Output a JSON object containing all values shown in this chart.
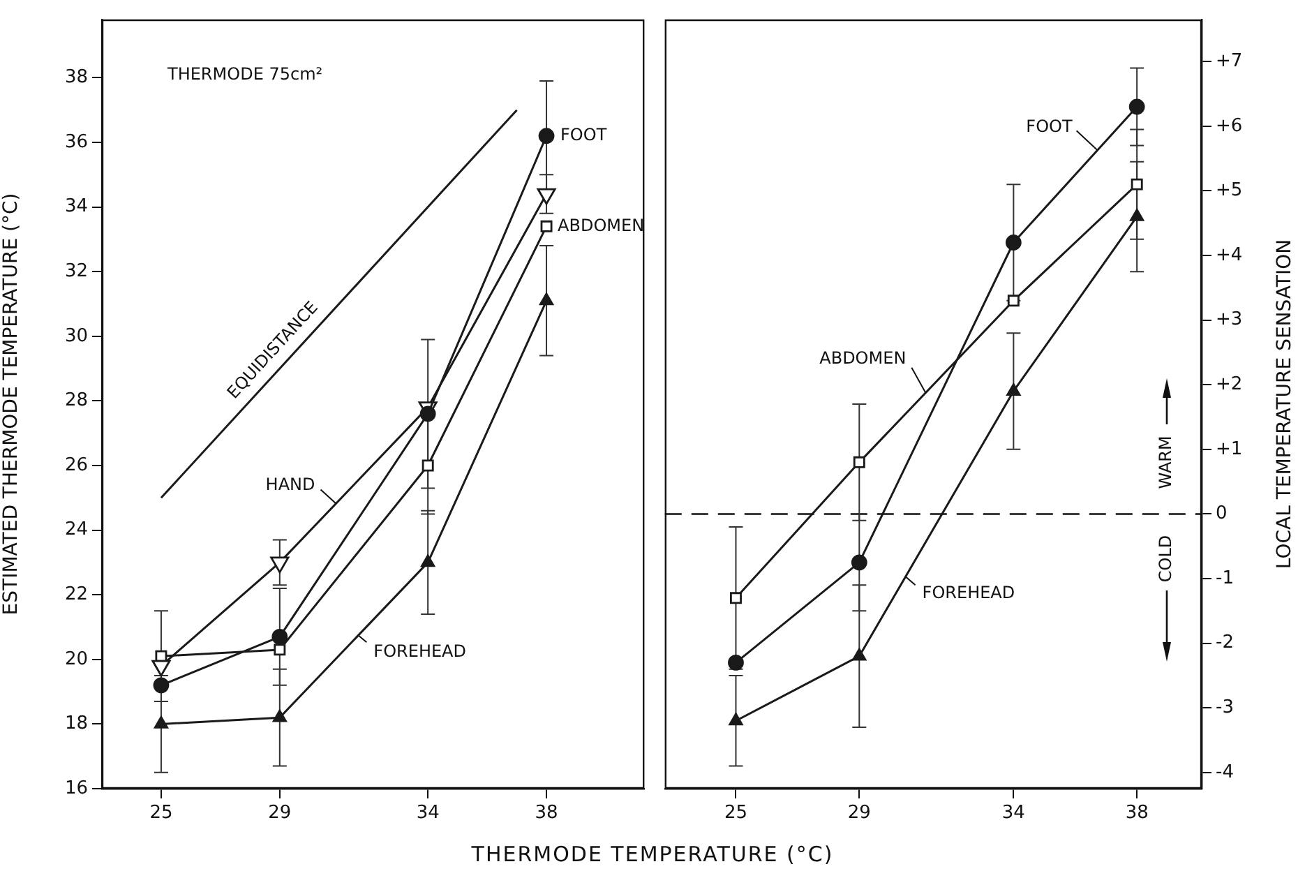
{
  "chart_data": [
    {
      "type": "line",
      "xlabel": "THERMODE TEMPERATURE (°C)",
      "ylabel": "ESTIMATED THERMODE TEMPERATURE (°C)",
      "annotations": [
        "THERMODE 75cm²"
      ],
      "x": [
        25,
        29,
        34,
        38
      ],
      "xlim": [
        23,
        41.3
      ],
      "xticks": [
        25,
        29,
        34,
        38
      ],
      "ylim": [
        16,
        39.8
      ],
      "yticks": [
        16,
        18,
        20,
        22,
        24,
        26,
        28,
        30,
        32,
        34,
        36,
        38
      ],
      "series": [
        {
          "name": "EQUIDISTANCE",
          "color": "#1a1a1a",
          "x": [
            25,
            37
          ],
          "values": [
            25,
            37
          ],
          "marker": "none"
        },
        {
          "name": "FOOT",
          "color": "#1a1a1a",
          "marker": "circle",
          "values": [
            19.2,
            20.7,
            27.6,
            36.2
          ],
          "errors": [
            null,
            1.5,
            2.3,
            1.7
          ]
        },
        {
          "name": "HAND",
          "color": "#1a1a1a",
          "marker": "triangle_down",
          "values": [
            19.8,
            23.0,
            27.8,
            34.4
          ],
          "errors": [
            null,
            0.7,
            null,
            0.6
          ]
        },
        {
          "name": "ABDOMEN",
          "color": "#1a1a1a",
          "marker": "square",
          "values": [
            20.1,
            20.3,
            26.0,
            33.4
          ],
          "errors": [
            1.4,
            null,
            1.5,
            null
          ]
        },
        {
          "name": "FOREHEAD",
          "color": "#1a1a1a",
          "marker": "triangle",
          "values": [
            18.0,
            18.2,
            23.0,
            31.1
          ],
          "errors": [
            1.5,
            1.5,
            1.6,
            1.7
          ]
        }
      ]
    },
    {
      "type": "line",
      "y2label": "LOCAL TEMPERATURE SENSATION",
      "annotations": [
        "WARM",
        "COLD"
      ],
      "x": [
        25,
        29,
        34,
        38
      ],
      "xlim": [
        22.7,
        40.1
      ],
      "xticks": [
        25,
        29,
        34,
        38
      ],
      "y2lim": [
        -4.25,
        7.65
      ],
      "y2ticks": [
        {
          "value": 7,
          "label": "+7"
        },
        {
          "value": 6,
          "label": "+6"
        },
        {
          "value": 5,
          "label": "+5"
        },
        {
          "value": 4,
          "label": "+4"
        },
        {
          "value": 3,
          "label": "+3"
        },
        {
          "value": 2,
          "label": "+2"
        },
        {
          "value": 1,
          "label": "+1"
        },
        0,
        -1,
        -2,
        -3,
        -4
      ],
      "ref_lines": [
        {
          "axis": "y2",
          "value": 0,
          "line_style": "dashed"
        }
      ],
      "series": [
        {
          "name": "FOOT",
          "color": "#1a1a1a",
          "marker": "circle",
          "axis": "y2",
          "values": [
            -2.3,
            -0.75,
            4.2,
            6.3
          ],
          "errors": [
            null,
            0.75,
            0.9,
            0.6
          ]
        },
        {
          "name": "ABDOMEN",
          "color": "#1a1a1a",
          "marker": "square",
          "axis": "y2",
          "values": [
            -1.3,
            0.8,
            3.3,
            5.1
          ],
          "errors": [
            1.1,
            0.9,
            null,
            0.85
          ]
        },
        {
          "name": "FOREHEAD",
          "color": "#1a1a1a",
          "marker": "triangle",
          "axis": "y2",
          "values": [
            -3.2,
            -2.2,
            1.9,
            4.6
          ],
          "errors": [
            0.7,
            1.1,
            0.9,
            0.85
          ]
        }
      ]
    }
  ]
}
